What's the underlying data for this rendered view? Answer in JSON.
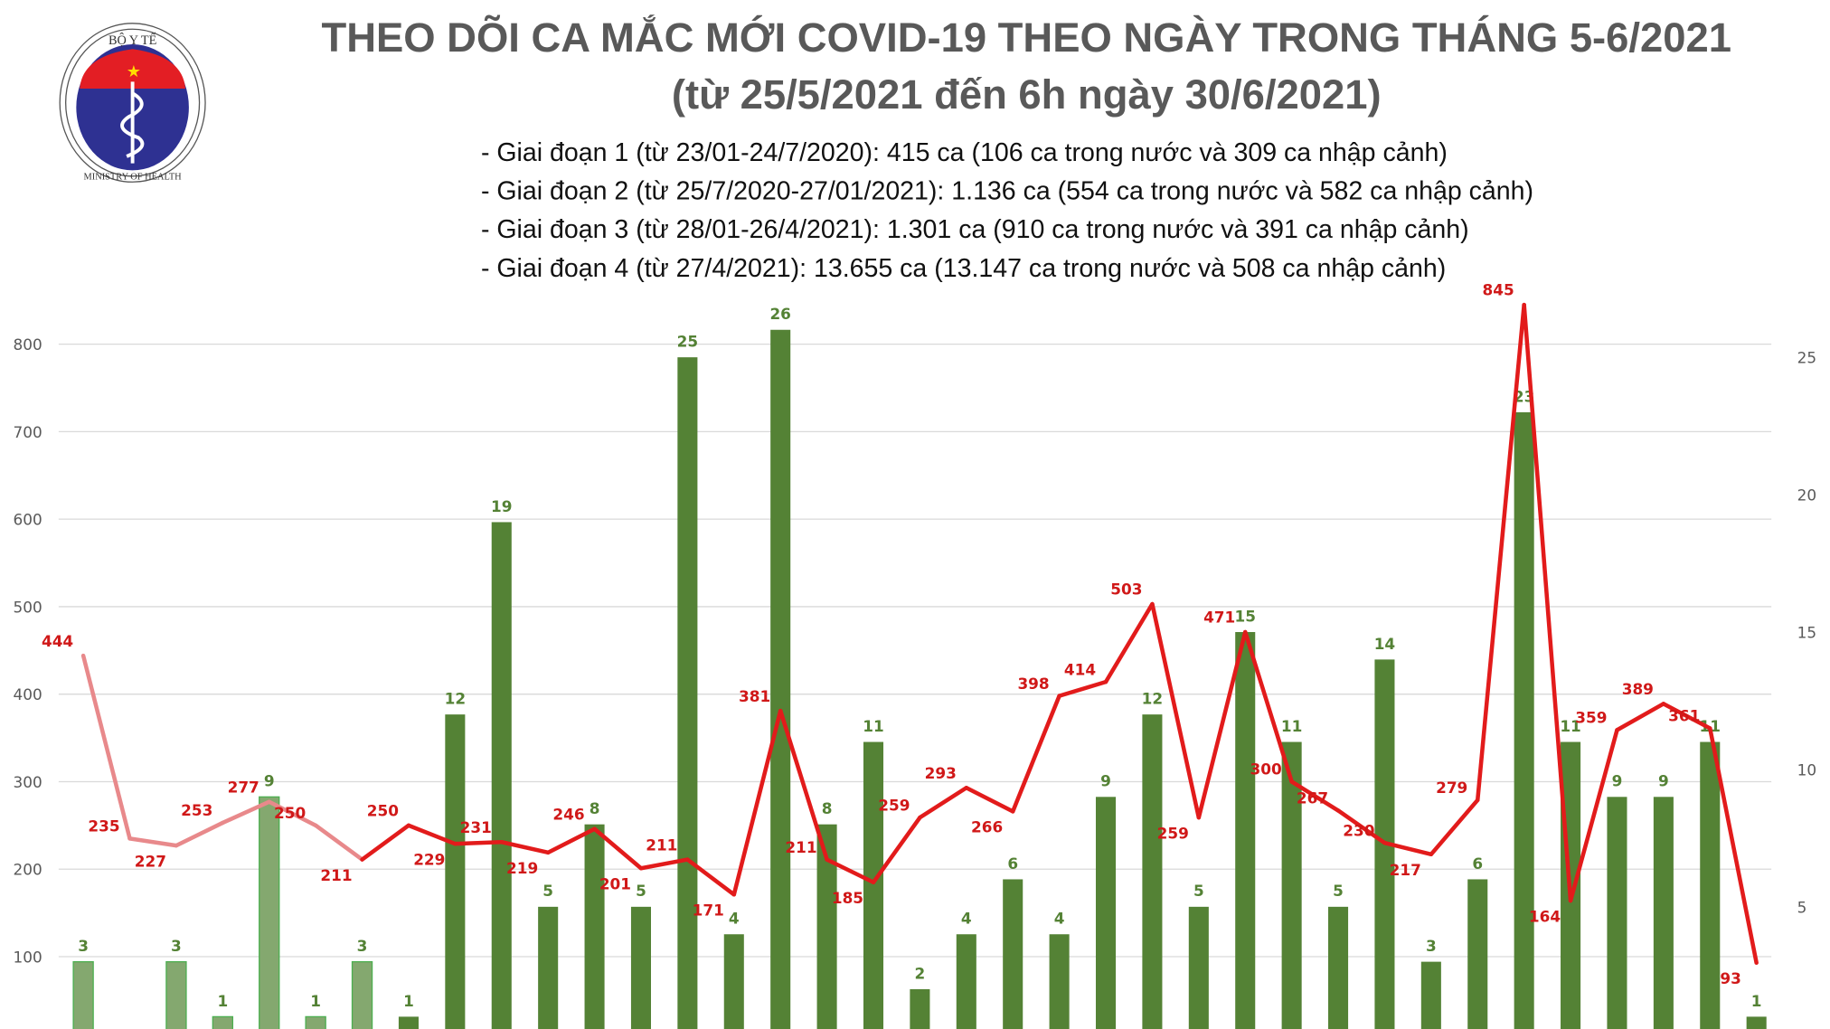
{
  "header": {
    "title_line1": "THEO DÕI CA MẮC MỚI COVID-19 THEO NGÀY TRONG THÁNG 5-6/2021",
    "title_line2": "(từ 25/5/2021 đến 6h ngày 30/6/2021)",
    "phases": [
      "- Giai đoạn 1 (từ 23/01-24/7/2020): 415 ca (106 ca trong nước và 309 ca nhập cảnh)",
      "- Giai đoạn 2 (từ 25/7/2020-27/01/2021): 1.136 ca (554 ca trong nước và 582 ca nhập cảnh)",
      "- Giai đoạn 3 (từ 28/01-26/4/2021): 1.301 ca (910 ca trong nước và 391 ca nhập cảnh)",
      "- Giai đoạn 4 (từ 27/4/2021): 13.655 ca (13.147 ca trong nước và 508 ca nhập cảnh)"
    ]
  },
  "logo": {
    "text_top": "BỘ Y TẾ",
    "text_bottom": "MINISTRY OF HEALTH"
  },
  "chart_data": {
    "type": "bar+line",
    "left_axis": {
      "ticks": [
        100,
        200,
        300,
        400,
        500,
        600,
        700,
        800
      ],
      "range": [
        0,
        860
      ]
    },
    "right_axis": {
      "ticks": [
        5,
        10,
        15,
        20,
        25
      ],
      "range": [
        0,
        27
      ]
    },
    "grid": true,
    "series": [
      {
        "type": "bar",
        "axis": "right",
        "color": "#548235",
        "light_color": "#84a86f",
        "values": [
          3,
          0,
          3,
          1,
          9,
          1,
          3,
          1,
          12,
          19,
          5,
          8,
          5,
          25,
          4,
          26,
          8,
          11,
          2,
          4,
          6,
          4,
          9,
          12,
          5,
          15,
          11,
          5,
          14,
          3,
          6,
          23,
          11,
          9,
          9,
          11,
          1
        ]
      },
      {
        "type": "line",
        "axis": "left",
        "color": "#e21b1b",
        "light_color": "#e8898b",
        "values": [
          444,
          235,
          227,
          253,
          277,
          250,
          211,
          250,
          229,
          231,
          219,
          246,
          201,
          211,
          171,
          381,
          211,
          185,
          259,
          293,
          266,
          398,
          414,
          503,
          259,
          471,
          300,
          267,
          230,
          217,
          279,
          845,
          164,
          359,
          389,
          361,
          93
        ]
      }
    ]
  }
}
